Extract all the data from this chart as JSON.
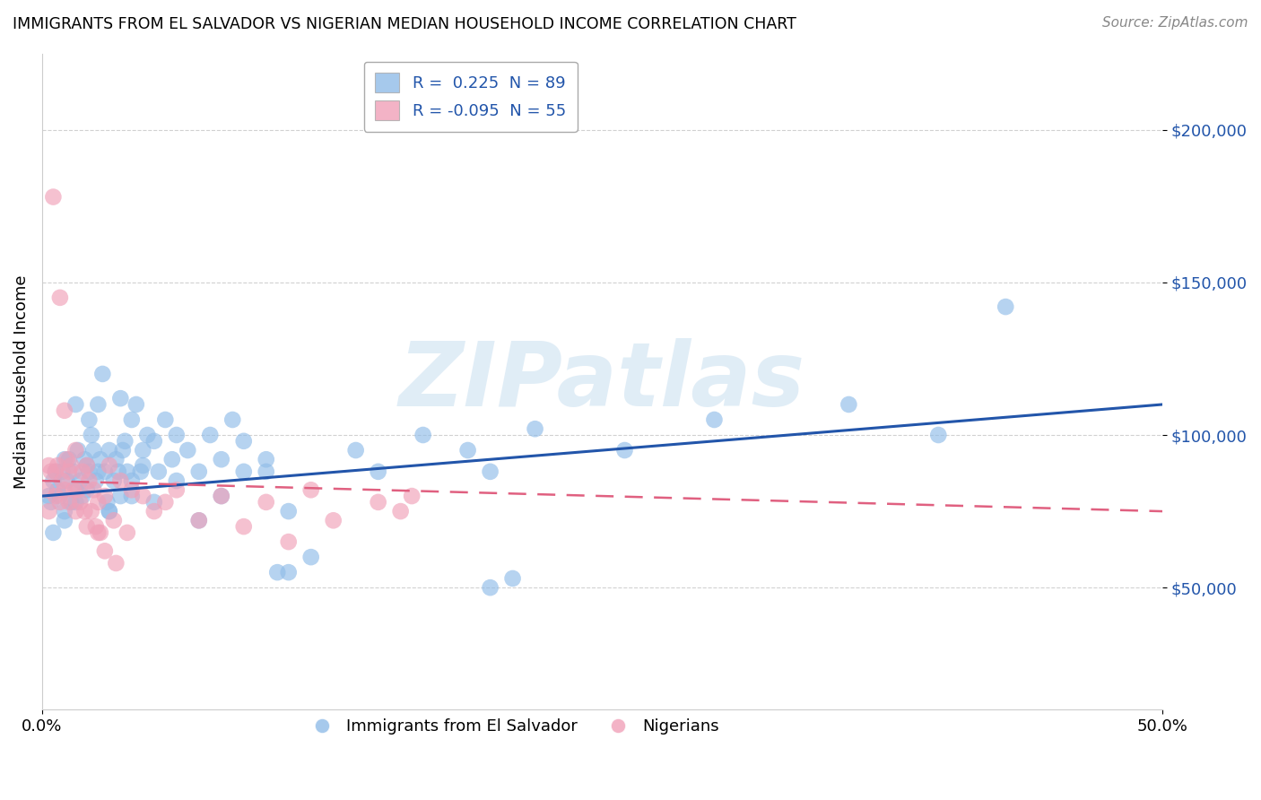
{
  "title": "IMMIGRANTS FROM EL SALVADOR VS NIGERIAN MEDIAN HOUSEHOLD INCOME CORRELATION CHART",
  "source": "Source: ZipAtlas.com",
  "ylabel": "Median Household Income",
  "y_ticks": [
    50000,
    100000,
    150000,
    200000
  ],
  "y_tick_labels": [
    "$50,000",
    "$100,000",
    "$150,000",
    "$200,000"
  ],
  "xlim": [
    0.0,
    50.0
  ],
  "ylim": [
    10000,
    225000
  ],
  "blue_color": "#90bce8",
  "pink_color": "#f0a0b8",
  "blue_line_color": "#2255aa",
  "pink_line_color": "#e06080",
  "watermark": "ZIPatlas",
  "blue_scatter_x": [
    0.3,
    0.4,
    0.5,
    0.6,
    0.7,
    0.8,
    0.9,
    1.0,
    1.0,
    1.1,
    1.2,
    1.3,
    1.4,
    1.5,
    1.5,
    1.6,
    1.7,
    1.8,
    1.9,
    2.0,
    2.1,
    2.1,
    2.2,
    2.3,
    2.4,
    2.5,
    2.6,
    2.7,
    2.8,
    2.9,
    3.0,
    3.0,
    3.2,
    3.3,
    3.4,
    3.5,
    3.6,
    3.7,
    3.8,
    4.0,
    4.0,
    4.2,
    4.4,
    4.5,
    4.7,
    5.0,
    5.2,
    5.5,
    5.8,
    6.0,
    6.5,
    7.0,
    7.5,
    8.0,
    8.5,
    9.0,
    10.0,
    10.5,
    11.0,
    12.0,
    14.0,
    15.0,
    17.0,
    19.0,
    20.0,
    22.0,
    26.0,
    30.0,
    36.0,
    40.0,
    43.0,
    20.0,
    21.0,
    0.5,
    1.0,
    1.5,
    2.0,
    2.5,
    3.0,
    3.5,
    4.0,
    4.5,
    5.0,
    6.0,
    7.0,
    8.0,
    9.0,
    10.0,
    11.0
  ],
  "blue_scatter_y": [
    80000,
    78000,
    85000,
    88000,
    82000,
    80000,
    88000,
    92000,
    75000,
    85000,
    92000,
    78000,
    88000,
    82000,
    110000,
    95000,
    85000,
    80000,
    92000,
    90000,
    105000,
    88000,
    100000,
    95000,
    85000,
    110000,
    92000,
    120000,
    88000,
    78000,
    95000,
    75000,
    85000,
    92000,
    88000,
    112000,
    95000,
    98000,
    88000,
    105000,
    80000,
    110000,
    88000,
    95000,
    100000,
    98000,
    88000,
    105000,
    92000,
    100000,
    95000,
    88000,
    100000,
    92000,
    105000,
    98000,
    88000,
    55000,
    55000,
    60000,
    95000,
    88000,
    100000,
    95000,
    88000,
    102000,
    95000,
    105000,
    110000,
    100000,
    142000,
    50000,
    53000,
    68000,
    72000,
    78000,
    82000,
    88000,
    75000,
    80000,
    85000,
    90000,
    78000,
    85000,
    72000,
    80000,
    88000,
    92000,
    75000
  ],
  "pink_scatter_x": [
    0.2,
    0.3,
    0.3,
    0.4,
    0.5,
    0.6,
    0.6,
    0.7,
    0.8,
    0.8,
    0.9,
    1.0,
    1.0,
    1.1,
    1.2,
    1.2,
    1.3,
    1.4,
    1.5,
    1.5,
    1.6,
    1.7,
    1.8,
    1.9,
    2.0,
    2.0,
    2.1,
    2.2,
    2.3,
    2.4,
    2.5,
    2.6,
    2.8,
    3.0,
    3.2,
    3.5,
    3.8,
    4.0,
    4.5,
    5.0,
    5.5,
    6.0,
    7.0,
    8.0,
    9.0,
    10.0,
    11.0,
    12.0,
    13.0,
    15.0,
    16.0,
    2.5,
    2.8,
    3.3,
    16.5
  ],
  "pink_scatter_y": [
    82000,
    90000,
    75000,
    88000,
    178000,
    88000,
    80000,
    90000,
    78000,
    145000,
    85000,
    108000,
    82000,
    92000,
    88000,
    78000,
    90000,
    82000,
    95000,
    75000,
    82000,
    78000,
    88000,
    75000,
    90000,
    70000,
    85000,
    75000,
    82000,
    70000,
    78000,
    68000,
    80000,
    90000,
    72000,
    85000,
    68000,
    82000,
    80000,
    75000,
    78000,
    82000,
    72000,
    80000,
    70000,
    78000,
    65000,
    82000,
    72000,
    78000,
    75000,
    68000,
    62000,
    58000,
    80000
  ],
  "legend_line1": "R =  0.225  N = 89",
  "legend_line2": "R = -0.095  N = 55",
  "legend_color": "#2255aa",
  "blue_label": "Immigrants from El Salvador",
  "pink_label": "Nigerians"
}
